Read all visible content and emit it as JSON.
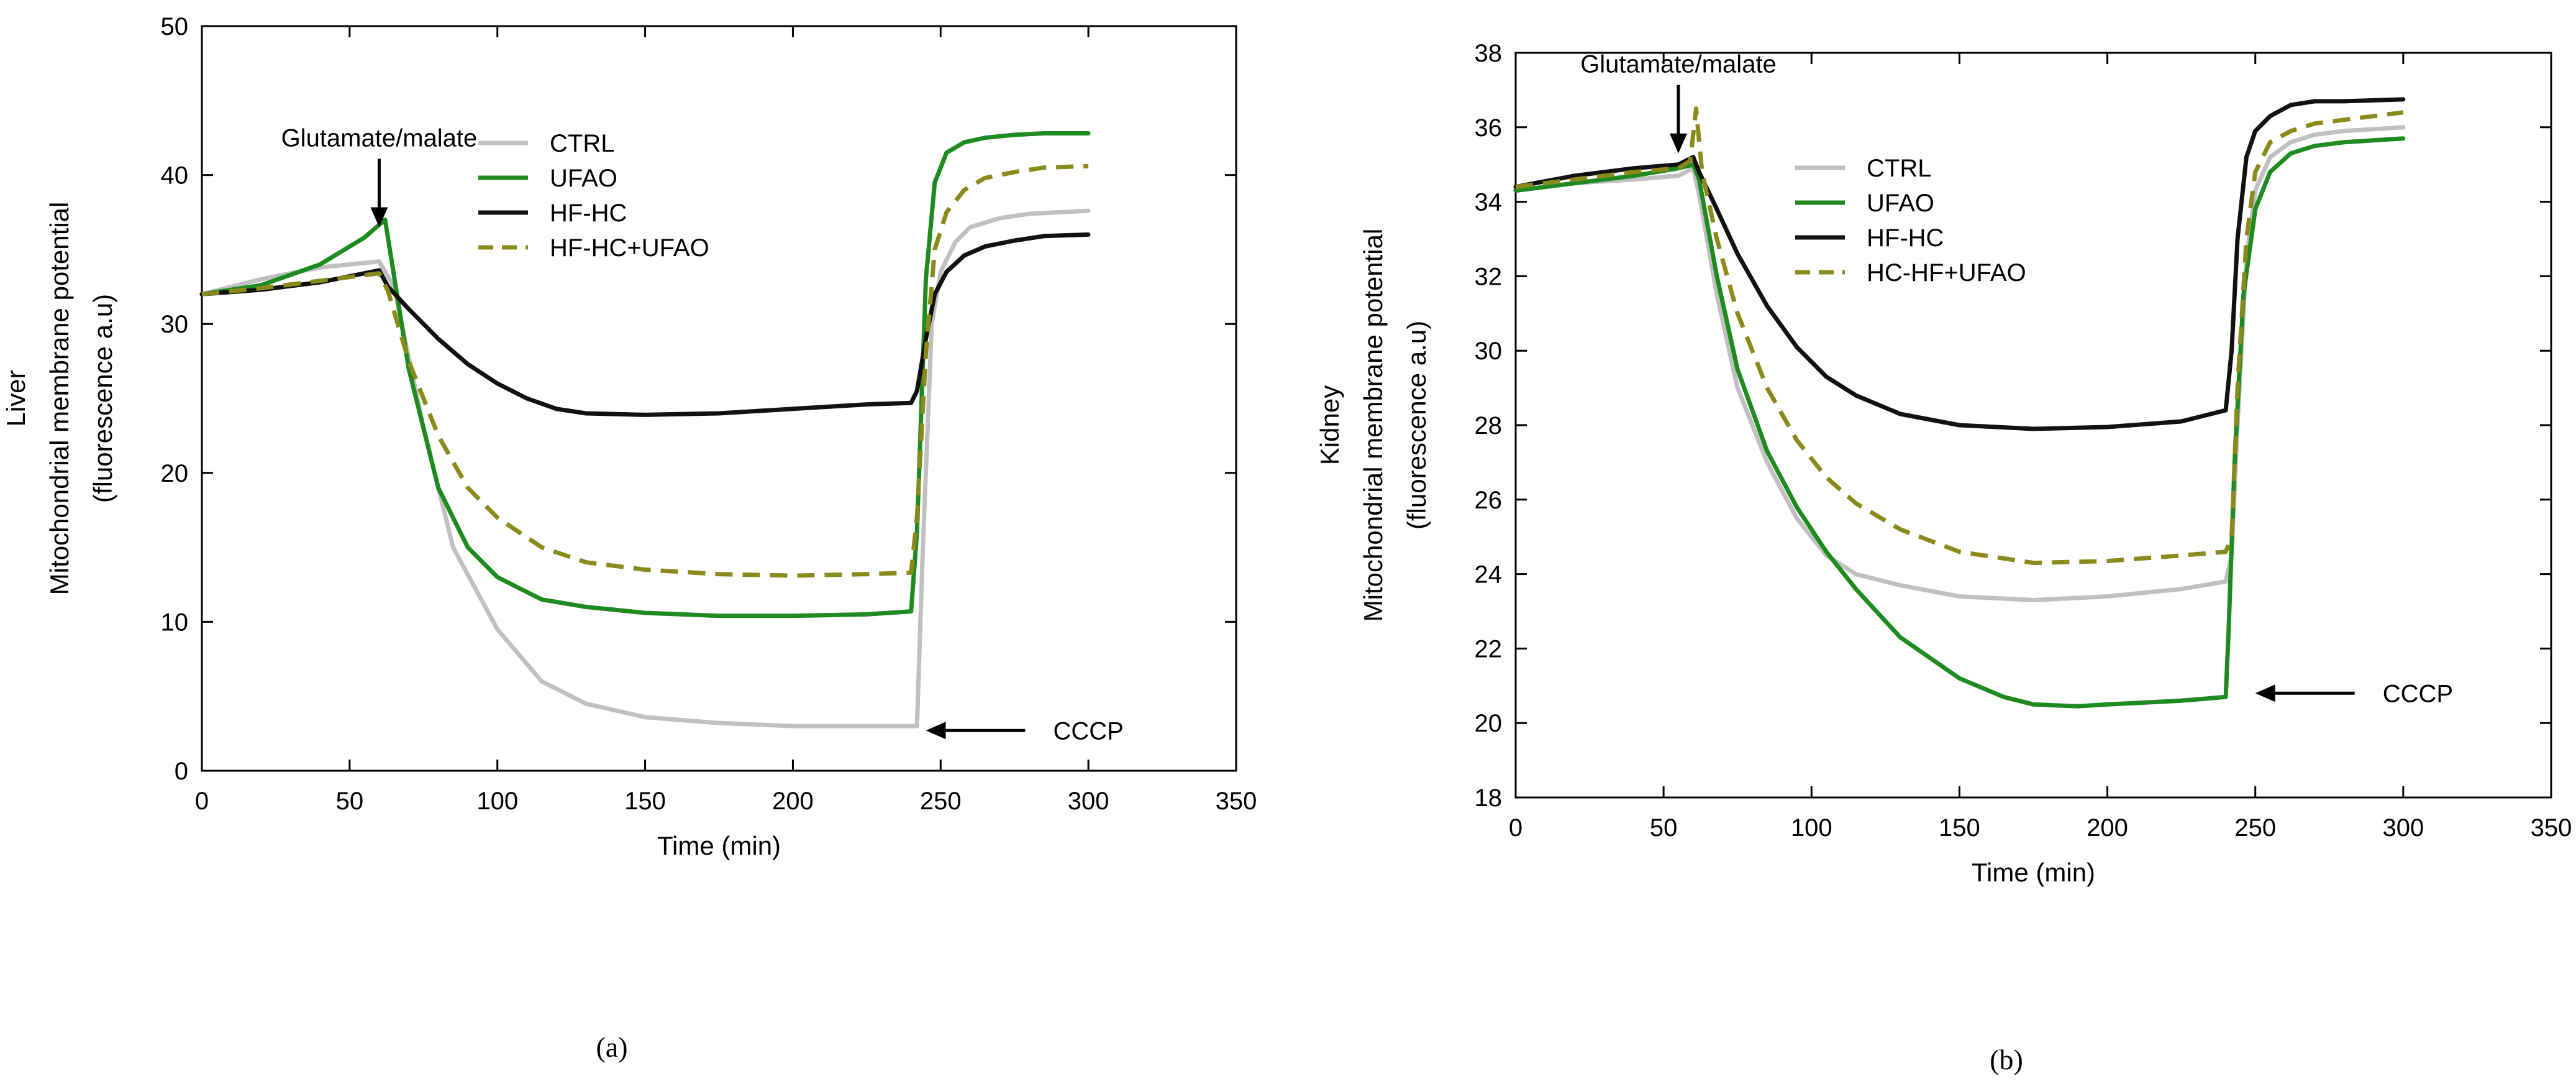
{
  "chart_data": [
    {
      "type": "line",
      "panel_label": "(a)",
      "xlabel": "Time (min)",
      "ylabel": [
        "Liver",
        "Mitochondrial membrane potential",
        "(fluorescence a.u)"
      ],
      "xlim": [
        0,
        350
      ],
      "ylim": [
        0,
        50
      ],
      "xticks": [
        0,
        50,
        100,
        150,
        200,
        250,
        300,
        350
      ],
      "yticks": [
        0,
        10,
        20,
        30,
        40,
        50
      ],
      "grid": false,
      "legend_position": "top-right",
      "annotations": [
        {
          "label": "Glutamate/malate",
          "x": 60,
          "y": 36.5,
          "arrow": "down"
        },
        {
          "label": "CCCP",
          "x": 245,
          "y": 2.7,
          "arrow": "left"
        }
      ],
      "series": [
        {
          "name": "CTRL",
          "color": "#c0c0c0",
          "dash": "solid",
          "x": [
            0,
            20,
            40,
            60,
            65,
            75,
            85,
            100,
            115,
            130,
            150,
            175,
            200,
            225,
            240,
            242,
            244,
            247,
            250,
            255,
            260,
            270,
            280,
            290,
            300
          ],
          "y": [
            32,
            33,
            33.8,
            34.2,
            32.5,
            23,
            15,
            9.5,
            6,
            4.5,
            3.6,
            3.2,
            3.0,
            3.0,
            3.0,
            3.0,
            15,
            30,
            33.5,
            35.5,
            36.5,
            37.1,
            37.4,
            37.5,
            37.6
          ]
        },
        {
          "name": "UFAO",
          "color": "#1f8a1f",
          "dash": "solid",
          "x": [
            0,
            20,
            40,
            55,
            62,
            64,
            70,
            80,
            90,
            100,
            115,
            130,
            150,
            175,
            200,
            225,
            240,
            242,
            245,
            248,
            252,
            258,
            265,
            275,
            285,
            300
          ],
          "y": [
            32,
            32.6,
            34,
            35.8,
            37,
            34.5,
            27,
            19,
            15,
            13,
            11.5,
            11,
            10.6,
            10.4,
            10.4,
            10.5,
            10.7,
            16,
            33,
            39.5,
            41.5,
            42.2,
            42.5,
            42.7,
            42.8,
            42.8
          ]
        },
        {
          "name": "HF-HC",
          "color": "#111111",
          "dash": "solid",
          "x": [
            0,
            20,
            40,
            60,
            63,
            70,
            80,
            90,
            100,
            110,
            120,
            130,
            150,
            175,
            200,
            225,
            240,
            242,
            245,
            248,
            252,
            258,
            265,
            275,
            285,
            300
          ],
          "y": [
            32,
            32.3,
            32.8,
            33.6,
            32.5,
            31,
            29,
            27.3,
            26,
            25,
            24.3,
            24.0,
            23.9,
            24.0,
            24.3,
            24.6,
            24.7,
            25.5,
            29,
            32,
            33.5,
            34.6,
            35.2,
            35.6,
            35.9,
            36.0
          ]
        },
        {
          "name": "HF-HC+UFAO",
          "color": "#8a8a1c",
          "dash": "dashed",
          "x": [
            0,
            20,
            40,
            60,
            63,
            70,
            80,
            90,
            100,
            115,
            130,
            150,
            175,
            200,
            225,
            240,
            242,
            245,
            248,
            252,
            258,
            265,
            275,
            285,
            300
          ],
          "y": [
            32,
            32.4,
            32.9,
            33.4,
            32.2,
            27.5,
            22.5,
            19,
            17,
            15,
            14,
            13.5,
            13.2,
            13.1,
            13.2,
            13.3,
            17,
            28,
            35,
            37.5,
            39,
            39.8,
            40.2,
            40.5,
            40.6
          ]
        }
      ]
    },
    {
      "type": "line",
      "panel_label": "(b)",
      "xlabel": "Time (min)",
      "ylabel": [
        "Kidney",
        "Mitochondrial membrane potential",
        "(fluorescence a.u)"
      ],
      "xlim": [
        0,
        350
      ],
      "ylim": [
        18,
        38
      ],
      "xticks": [
        0,
        50,
        100,
        150,
        200,
        250,
        300,
        350
      ],
      "yticks": [
        18,
        20,
        22,
        24,
        26,
        28,
        30,
        32,
        34,
        36,
        38
      ],
      "grid": false,
      "legend_position": "top-center",
      "annotations": [
        {
          "label": "Glutamate/malate",
          "x": 55,
          "y": 35.3,
          "arrow": "down"
        },
        {
          "label": "CCCP",
          "x": 250,
          "y": 20.8,
          "arrow": "left"
        }
      ],
      "series": [
        {
          "name": "CTRL",
          "color": "#c0c0c0",
          "dash": "solid",
          "x": [
            0,
            20,
            40,
            55,
            60,
            62,
            68,
            75,
            85,
            95,
            105,
            115,
            130,
            150,
            175,
            200,
            225,
            240,
            242,
            244,
            247,
            250,
            255,
            262,
            270,
            280,
            300
          ],
          "y": [
            34.3,
            34.5,
            34.6,
            34.7,
            34.9,
            34.2,
            31.5,
            29,
            27,
            25.5,
            24.5,
            24.0,
            23.7,
            23.4,
            23.3,
            23.4,
            23.6,
            23.8,
            24.5,
            28,
            32.5,
            34.3,
            35.2,
            35.6,
            35.8,
            35.9,
            36.0
          ]
        },
        {
          "name": "UFAO",
          "color": "#1f8a1f",
          "dash": "solid",
          "x": [
            0,
            20,
            40,
            55,
            60,
            62,
            68,
            75,
            85,
            95,
            105,
            115,
            130,
            150,
            165,
            175,
            190,
            200,
            225,
            240,
            241,
            243,
            246,
            250,
            255,
            262,
            270,
            280,
            300
          ],
          "y": [
            34.3,
            34.5,
            34.7,
            34.9,
            35.0,
            34.6,
            32,
            29.5,
            27.3,
            25.8,
            24.6,
            23.6,
            22.3,
            21.2,
            20.7,
            20.5,
            20.45,
            20.5,
            20.6,
            20.7,
            22.5,
            27,
            31.5,
            33.8,
            34.8,
            35.3,
            35.5,
            35.6,
            35.7
          ]
        },
        {
          "name": "HF-HC",
          "color": "#111111",
          "dash": "solid",
          "x": [
            0,
            20,
            40,
            55,
            60,
            62,
            68,
            75,
            85,
            95,
            105,
            115,
            130,
            150,
            175,
            200,
            225,
            240,
            242,
            244,
            247,
            250,
            255,
            262,
            270,
            280,
            300
          ],
          "y": [
            34.4,
            34.7,
            34.9,
            35.0,
            35.2,
            34.8,
            33.8,
            32.6,
            31.2,
            30.1,
            29.3,
            28.8,
            28.3,
            28.0,
            27.9,
            27.95,
            28.1,
            28.4,
            30,
            33,
            35.2,
            35.9,
            36.3,
            36.6,
            36.7,
            36.7,
            36.75
          ]
        },
        {
          "name": "HC-HF+UFAO",
          "color": "#8a8a1c",
          "dash": "dashed",
          "x": [
            0,
            20,
            40,
            55,
            59,
            61,
            63,
            68,
            75,
            85,
            95,
            105,
            115,
            130,
            150,
            175,
            200,
            225,
            240,
            242,
            244,
            247,
            250,
            255,
            262,
            270,
            280,
            300
          ],
          "y": [
            34.4,
            34.6,
            34.8,
            34.9,
            35.1,
            36.5,
            34.8,
            33,
            31,
            29,
            27.6,
            26.6,
            25.9,
            25.2,
            24.6,
            24.3,
            24.35,
            24.5,
            24.6,
            25,
            29,
            33,
            34.8,
            35.6,
            35.9,
            36.1,
            36.2,
            36.4
          ]
        }
      ]
    }
  ]
}
